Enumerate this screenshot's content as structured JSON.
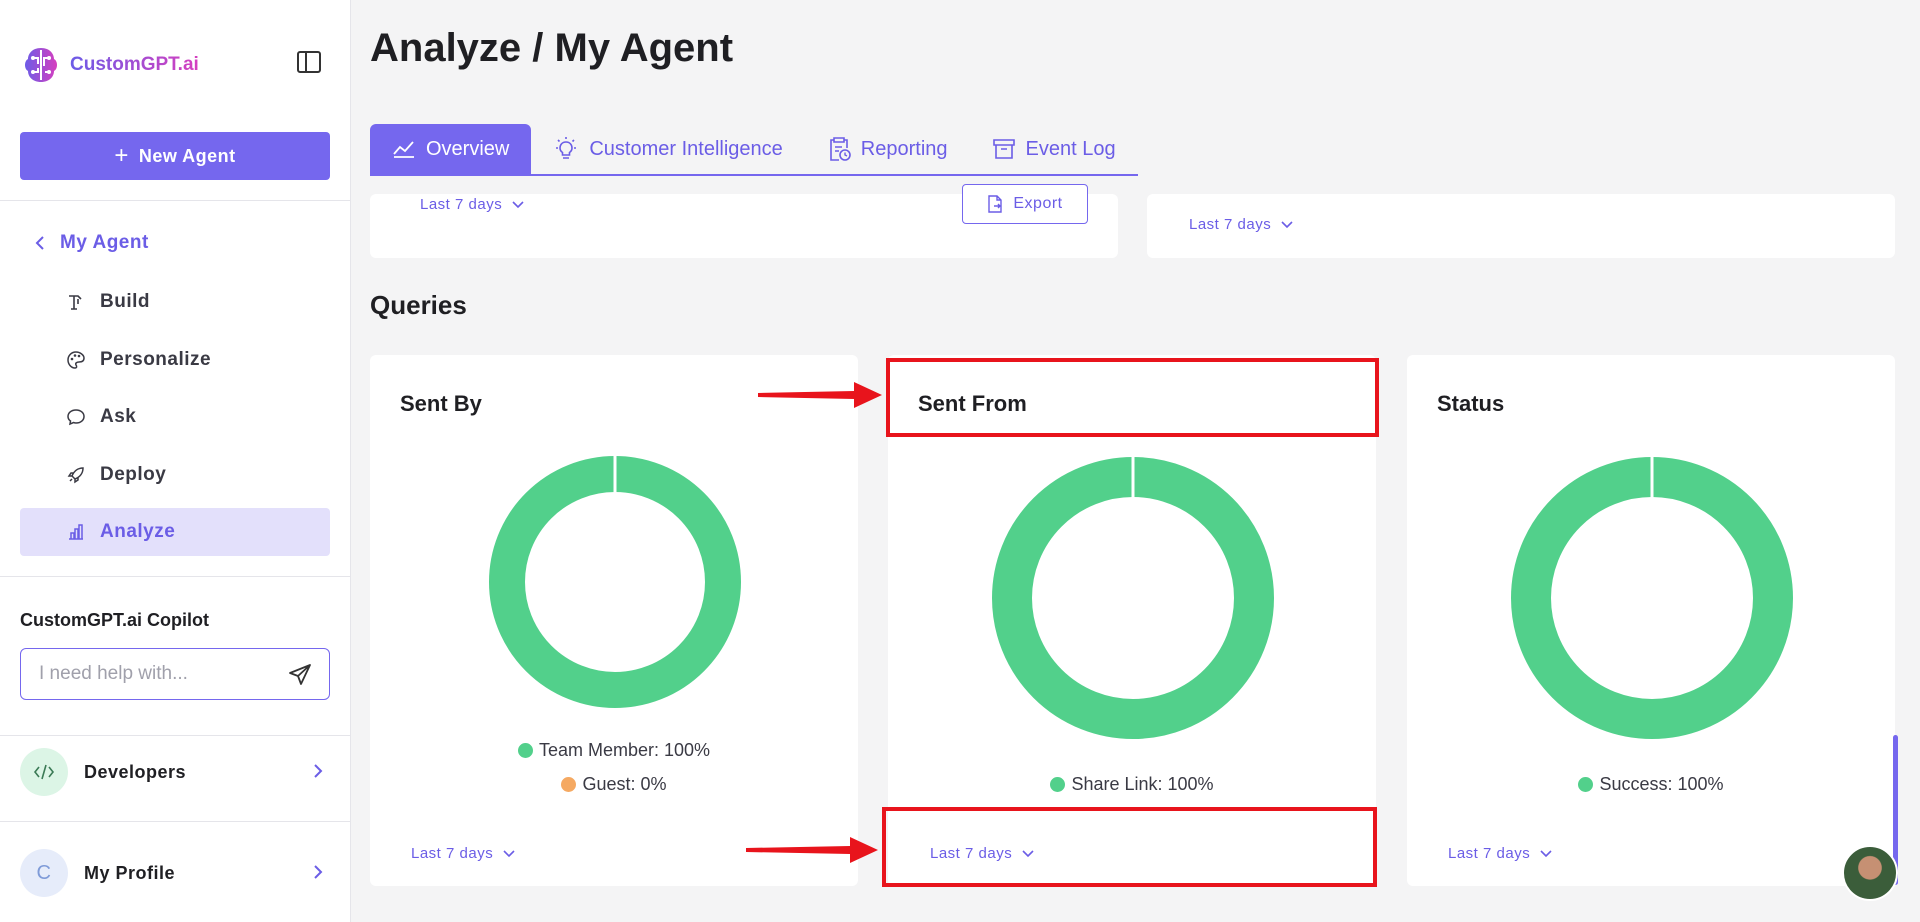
{
  "brand": {
    "name": "CustomGPT.ai"
  },
  "sidebar": {
    "new_agent_label": "New Agent",
    "back_label": "My Agent",
    "items": [
      {
        "label": "Build",
        "icon": "build-icon"
      },
      {
        "label": "Personalize",
        "icon": "palette-icon"
      },
      {
        "label": "Ask",
        "icon": "chat-icon"
      },
      {
        "label": "Deploy",
        "icon": "rocket-icon"
      },
      {
        "label": "Analyze",
        "icon": "bar-chart-icon",
        "active": true
      }
    ],
    "copilot_title": "CustomGPT.ai Copilot",
    "copilot_placeholder": "I need help with...",
    "developers_label": "Developers",
    "profile_label": "My Profile",
    "profile_initial": "C"
  },
  "header": {
    "title": "Analyze / My Agent"
  },
  "tabs": [
    {
      "label": "Overview",
      "active": true
    },
    {
      "label": "Customer Intelligence"
    },
    {
      "label": "Reporting"
    },
    {
      "label": "Event Log"
    }
  ],
  "top_cards": {
    "left_range": "Last 7 days",
    "export_label": "Export",
    "right_range": "Last 7 days"
  },
  "queries": {
    "section_title": "Queries",
    "cards": [
      {
        "title": "Sent By",
        "legend": [
          {
            "label": "Team Member: 100%",
            "color": "#52d08b"
          },
          {
            "label": "Guest: 0%",
            "color": "#f5a962"
          }
        ],
        "range": "Last 7 days"
      },
      {
        "title": "Sent From",
        "legend": [
          {
            "label": "Share Link: 100%",
            "color": "#52d08b"
          }
        ],
        "range": "Last 7 days"
      },
      {
        "title": "Status",
        "legend": [
          {
            "label": "Success: 100%",
            "color": "#52d08b"
          }
        ],
        "range": "Last 7 days"
      }
    ]
  },
  "colors": {
    "accent": "#7567ee",
    "donut": "#52d08b",
    "annotation": "#e8141c"
  }
}
